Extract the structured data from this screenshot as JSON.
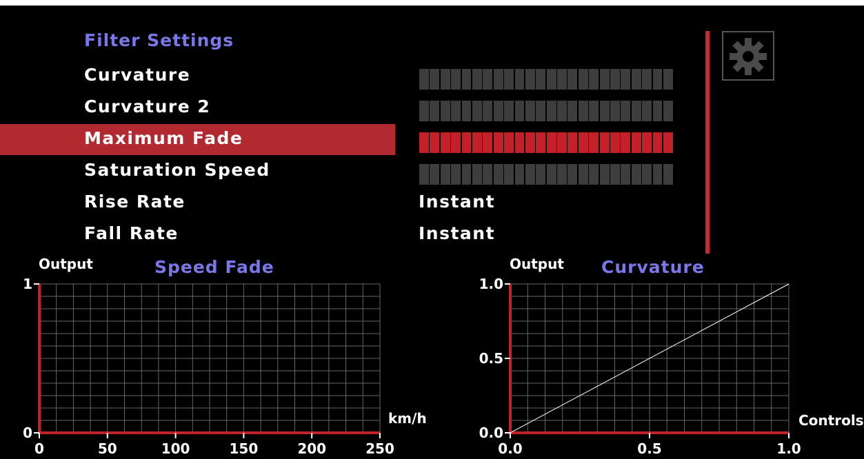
{
  "menu": {
    "title": "Filter Settings",
    "items": [
      {
        "label": "Curvature",
        "type": "slider",
        "level": 0,
        "selected": false
      },
      {
        "label": "Curvature 2",
        "type": "slider",
        "level": 0,
        "selected": false
      },
      {
        "label": "Maximum Fade",
        "type": "slider",
        "level": 1,
        "selected": true
      },
      {
        "label": "Saturation Speed",
        "type": "slider",
        "level": 0,
        "selected": false
      },
      {
        "label": "Rise Rate",
        "type": "text",
        "value": "Instant",
        "selected": false
      },
      {
        "label": "Fall Rate",
        "type": "text",
        "value": "Instant",
        "selected": false
      }
    ],
    "slider_segments": 24
  },
  "icons": {
    "settings": "gear-icon"
  },
  "colors": {
    "accent": "#c4202a",
    "title": "#7878e8",
    "slider_empty": "#3a3a3a",
    "grid": "#666666"
  },
  "chart_data": [
    {
      "type": "line",
      "title": "Speed Fade",
      "ylabel": "Output",
      "xlabel": "km/h",
      "xlim": [
        0,
        250
      ],
      "ylim": [
        0,
        1
      ],
      "x_ticks": [
        "0",
        "50",
        "100",
        "150",
        "200",
        "250"
      ],
      "y_ticks": [
        "0",
        "1"
      ],
      "series": [],
      "grid": true
    },
    {
      "type": "line",
      "title": "Curvature",
      "ylabel": "Output",
      "xlabel": "Controls",
      "xlim": [
        0,
        1
      ],
      "ylim": [
        0,
        1
      ],
      "x_ticks": [
        "0.0",
        "0.5",
        "1.0"
      ],
      "y_ticks": [
        "0.0",
        "0.5",
        "1.0"
      ],
      "series": [
        {
          "x": [
            0.0,
            1.0
          ],
          "y": [
            0.0,
            1.0
          ]
        }
      ],
      "grid": true
    }
  ]
}
